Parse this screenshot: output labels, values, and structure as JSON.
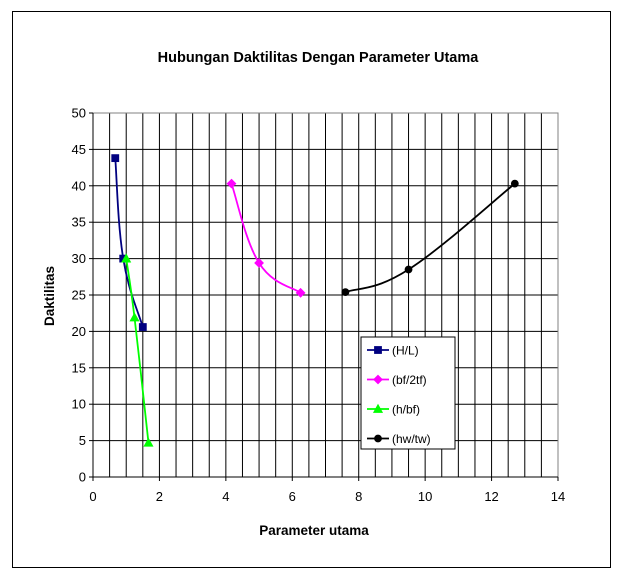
{
  "chart_data": {
    "type": "line",
    "title": "Hubungan Daktilitas Dengan Parameter Utama",
    "xlabel": "Parameter utama",
    "ylabel": "Daktilitas",
    "xlim": [
      0,
      14
    ],
    "ylim": [
      0,
      50
    ],
    "xticks": [
      0,
      2,
      4,
      6,
      8,
      10,
      12,
      14
    ],
    "yticks": [
      0,
      5,
      10,
      15,
      20,
      25,
      30,
      35,
      40,
      45,
      50
    ],
    "x_minor_step": 0.5,
    "grid": true,
    "legend_position": "lower-right",
    "series": [
      {
        "name": "(H/L)",
        "color": "#000080",
        "marker": "square",
        "x": [
          0.67,
          0.91,
          1.5
        ],
        "y": [
          43.8,
          30.0,
          20.6
        ]
      },
      {
        "name": "(bf/2tf)",
        "color": "#ff00ff",
        "marker": "diamond",
        "x": [
          4.17,
          5.0,
          6.25
        ],
        "y": [
          40.3,
          29.4,
          25.3
        ]
      },
      {
        "name": "(h/bf)",
        "color": "#00ff00",
        "marker": "triangle",
        "x": [
          1.0,
          1.25,
          1.67
        ],
        "y": [
          30.0,
          21.9,
          4.7
        ]
      },
      {
        "name": "(hw/tw)",
        "color": "#000000",
        "marker": "circle",
        "x": [
          7.6,
          9.5,
          12.7
        ],
        "y": [
          25.4,
          28.5,
          40.3
        ]
      }
    ]
  }
}
